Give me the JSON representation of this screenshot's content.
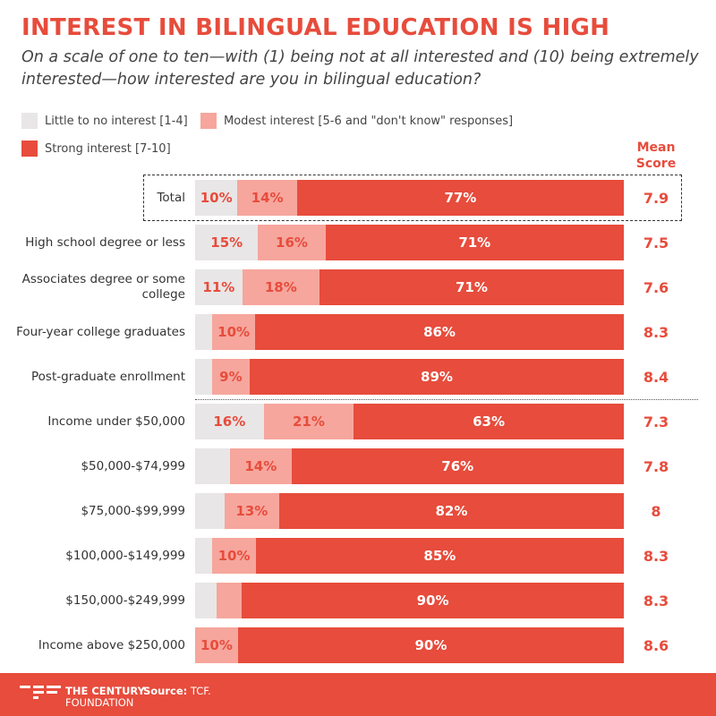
{
  "title": "INTEREST IN BILINGUAL EDUCATION IS HIGH",
  "subtitle": "On a scale of one to ten—with (1) being not at all interested and (10) being extremely interested—how interested are you in bilingual education?",
  "mean_header": "Mean Score",
  "footer": {
    "brand_line1": "THE CENTURY",
    "brand_line2": "FOUNDATION",
    "source_label": "Source:",
    "source_value": "TCF."
  },
  "chart_data": {
    "type": "bar",
    "orientation": "horizontal",
    "stacked": true,
    "title": "INTEREST IN BILINGUAL EDUCATION IS HIGH",
    "colors": [
      "#e8e6e6",
      "#f6a69d",
      "#e74c3c"
    ],
    "legend": [
      "Little to no interest [1-4]",
      "Modest interest [5-6 and \"don't know\" responses]",
      "Strong interest [7-10]"
    ],
    "categories": [
      "Total",
      "High school degree or less",
      "Associates degree or some college",
      "Four-year college graduates",
      "Post-graduate enrollment",
      "Income under $50,000",
      "$50,000-$74,999",
      "$75,000-$99,999",
      "$100,000-$149,999",
      "$150,000-$249,999",
      "Income above $250,000"
    ],
    "series": [
      {
        "name": "Little to no interest [1-4]",
        "values": [
          10,
          15,
          11,
          4,
          4,
          16,
          8,
          7,
          4,
          5,
          0
        ],
        "labels": [
          "10%",
          "15%",
          "11%",
          "",
          "",
          "16%",
          "",
          "",
          "",
          "",
          ""
        ]
      },
      {
        "name": "Modest interest [5-6 and \"don't know\" responses]",
        "values": [
          14,
          16,
          18,
          10,
          9,
          21,
          14,
          13,
          10,
          6,
          10
        ],
        "labels": [
          "14%",
          "16%",
          "18%",
          "10%",
          "9%",
          "21%",
          "14%",
          "13%",
          "10%",
          "",
          "10%"
        ]
      },
      {
        "name": "Strong interest [7-10]",
        "values": [
          77,
          71,
          71,
          86,
          89,
          63,
          76,
          82,
          85,
          90,
          90
        ],
        "labels": [
          "77%",
          "71%",
          "71%",
          "86%",
          "89%",
          "63%",
          "76%",
          "82%",
          "85%",
          "90%",
          "90%"
        ]
      }
    ],
    "mean_scores": [
      "7.9",
      "7.5",
      "7.6",
      "8.3",
      "8.4",
      "7.3",
      "7.8",
      "8",
      "8.3",
      "8.3",
      "8.6"
    ]
  }
}
